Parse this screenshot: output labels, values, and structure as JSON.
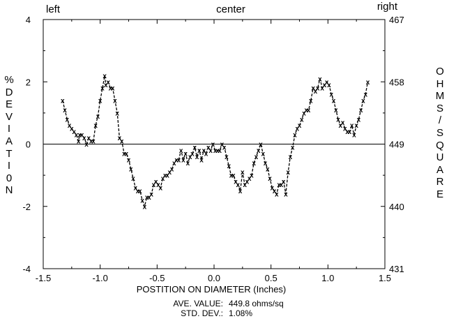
{
  "chart_data": {
    "type": "line",
    "title": "",
    "xlabel": "POSTITION ON DIAMETER (Inches)",
    "ylabel_left": "%DEVIATI0N",
    "ylabel_right": "OHMS/SQUARE",
    "xlim": [
      -1.5,
      1.5
    ],
    "ylim_left": [
      -4,
      4
    ],
    "ylim_right": [
      431,
      467
    ],
    "x_ticks": [
      "-1.5",
      "-1.0",
      "-0.5",
      "0.0",
      "0.5",
      "1.0",
      "1.5"
    ],
    "y_ticks_left": [
      "4",
      "2",
      "0",
      "-2",
      "-4"
    ],
    "y_ticks_right": [
      "467",
      "458",
      "449",
      "440",
      "431"
    ],
    "top_labels": {
      "left": "left",
      "center": "center",
      "right": "right"
    },
    "reference_line_y": 0,
    "marker": "x",
    "line_style": "dashed",
    "series": [
      {
        "x": [
          -1.33,
          -1.31,
          -1.29,
          -1.27,
          -1.25,
          -1.23,
          -1.21,
          -1.19,
          -1.18,
          -1.16,
          -1.14,
          -1.12,
          -1.1,
          -1.08,
          -1.06,
          -1.04,
          -1.02,
          -1.0,
          -0.98,
          -0.96,
          -0.95,
          -0.93,
          -0.91,
          -0.89,
          -0.87,
          -0.85,
          -0.83,
          -0.81,
          -0.79,
          -0.77,
          -0.75,
          -0.73,
          -0.71,
          -0.69,
          -0.67,
          -0.65,
          -0.63,
          -0.61,
          -0.59,
          -0.57,
          -0.55,
          -0.53,
          -0.51,
          -0.49,
          -0.47,
          -0.45,
          -0.43,
          -0.41,
          -0.39,
          -0.37,
          -0.35,
          -0.33,
          -0.31,
          -0.29,
          -0.27,
          -0.25,
          -0.23,
          -0.21,
          -0.19,
          -0.17,
          -0.15,
          -0.13,
          -0.11,
          -0.09,
          -0.07,
          -0.05,
          -0.03,
          -0.01,
          0.01,
          0.03,
          0.05,
          0.07,
          0.09,
          0.11,
          0.13,
          0.15,
          0.17,
          0.19,
          0.21,
          0.23,
          0.25,
          0.27,
          0.29,
          0.31,
          0.33,
          0.35,
          0.37,
          0.39,
          0.41,
          0.43,
          0.45,
          0.47,
          0.49,
          0.51,
          0.53,
          0.55,
          0.57,
          0.59,
          0.61,
          0.63,
          0.65,
          0.67,
          0.69,
          0.71,
          0.73,
          0.75,
          0.77,
          0.79,
          0.81,
          0.83,
          0.85,
          0.87,
          0.89,
          0.91,
          0.93,
          0.95,
          0.97,
          0.99,
          1.01,
          1.03,
          1.05,
          1.07,
          1.09,
          1.11,
          1.13,
          1.15,
          1.17,
          1.19,
          1.21,
          1.23,
          1.25,
          1.27,
          1.29,
          1.31,
          1.33,
          1.35
        ],
        "y": [
          1.4,
          1.1,
          0.8,
          0.6,
          0.5,
          0.4,
          0.3,
          0.1,
          0.3,
          0.3,
          0.2,
          0.0,
          0.2,
          0.1,
          0.1,
          0.6,
          0.9,
          1.4,
          1.8,
          2.2,
          1.9,
          2.0,
          1.8,
          1.8,
          1.4,
          1.0,
          0.2,
          0.1,
          -0.3,
          -0.3,
          -0.5,
          -0.8,
          -1.1,
          -1.4,
          -1.5,
          -1.5,
          -1.8,
          -2.0,
          -1.7,
          -1.7,
          -1.6,
          -1.3,
          -1.2,
          -1.3,
          -1.4,
          -1.1,
          -1.0,
          -1.0,
          -0.9,
          -0.8,
          -0.6,
          -0.5,
          -0.5,
          -0.2,
          -0.5,
          -0.3,
          -0.6,
          -0.4,
          -0.3,
          -0.1,
          -0.4,
          -0.2,
          -0.5,
          -0.2,
          -0.3,
          -0.1,
          -0.2,
          0.0,
          -0.2,
          -0.2,
          -0.2,
          0.0,
          -0.1,
          -0.4,
          -0.7,
          -1.0,
          -1.0,
          -1.2,
          -1.3,
          -1.5,
          -0.9,
          -1.3,
          -1.2,
          -1.1,
          -1.0,
          -0.6,
          -0.4,
          -0.2,
          0.0,
          -0.3,
          -0.6,
          -0.8,
          -1.1,
          -1.4,
          -1.5,
          -1.6,
          -1.3,
          -1.3,
          -1.2,
          -1.6,
          -0.9,
          -0.4,
          -0.1,
          0.3,
          0.5,
          0.6,
          0.8,
          1.0,
          1.1,
          1.1,
          1.4,
          1.8,
          1.7,
          1.8,
          2.1,
          1.8,
          1.9,
          2.0,
          1.9,
          1.6,
          1.4,
          1.1,
          0.8,
          0.6,
          0.7,
          0.5,
          0.4,
          0.4,
          0.6,
          0.3,
          0.6,
          0.8,
          1.1,
          1.4,
          1.6,
          2.0
        ]
      }
    ]
  },
  "stats": {
    "ave_label": "AVE. VALUE:",
    "ave_value": "449.8 ohms/sq",
    "std_label": "STD. DEV.:",
    "std_value": "1.08%"
  }
}
